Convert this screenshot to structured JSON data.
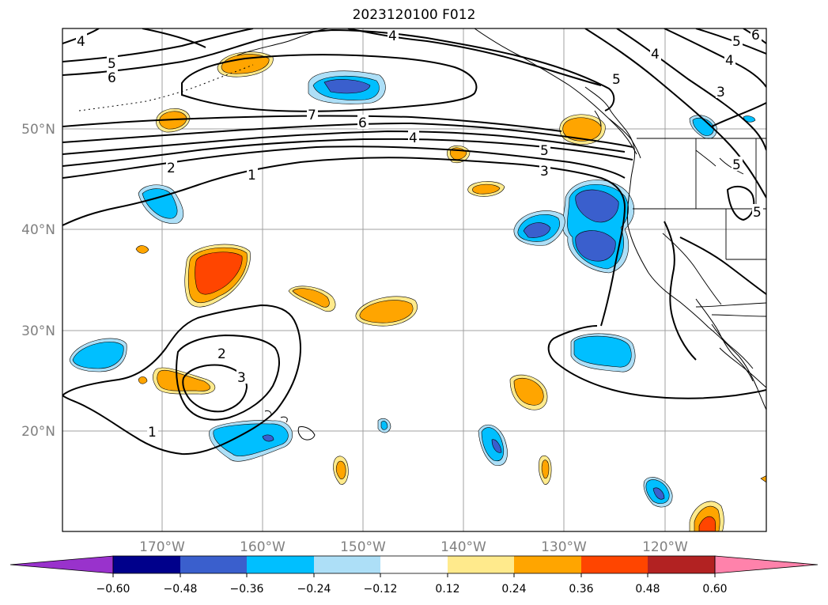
{
  "title": "2023120100 F012",
  "map": {
    "longitude_labels": [
      "170°W",
      "160°W",
      "150°W",
      "140°W",
      "130°W",
      "120°W"
    ],
    "latitude_labels": [
      "20°N",
      "30°N",
      "40°N",
      "50°N"
    ],
    "contour_labels": [
      "4",
      "5",
      "6",
      "7",
      "6",
      "4",
      "5",
      "3",
      "2",
      "1",
      "2",
      "3",
      "1",
      "4",
      "5",
      "4",
      "5",
      "3",
      "5",
      "5",
      "6"
    ]
  },
  "colorbar": {
    "tick_labels": [
      "−0.60",
      "−0.48",
      "−0.36",
      "−0.24",
      "−0.12",
      "0.12",
      "0.24",
      "0.36",
      "0.48",
      "0.60"
    ],
    "colors": [
      "#9932CC",
      "#00008B",
      "#3A5FCD",
      "#00BFFF",
      "#ADDFF7",
      "#FFFFFF",
      "#FFEA8C",
      "#FFA500",
      "#FF4500",
      "#B22222",
      "#FF82AB"
    ]
  }
}
